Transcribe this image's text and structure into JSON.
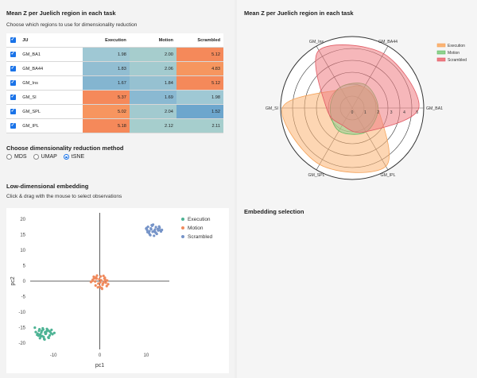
{
  "left": {
    "title": "Mean Z per Juelich region in each task",
    "subtitle": "Choose which regions to use for dimensionality reduction",
    "table": {
      "headers": [
        "JU",
        "Execution",
        "Motion",
        "Scrambled"
      ],
      "rows": [
        {
          "name": "GM_BA1",
          "values": [
            "1.98",
            "2.00",
            "5.12"
          ],
          "colors": [
            "#9fc8d4",
            "#a6cdcd",
            "#f5895a"
          ]
        },
        {
          "name": "GM_BA44",
          "values": [
            "1.83",
            "2.06",
            "4.83"
          ],
          "colors": [
            "#92bed2",
            "#a3cbcf",
            "#f6965f"
          ]
        },
        {
          "name": "GM_Ins",
          "values": [
            "1.67",
            "1.84",
            "5.12"
          ],
          "colors": [
            "#84b5d0",
            "#96c1d1",
            "#f5895a"
          ]
        },
        {
          "name": "GM_SI",
          "values": [
            "5.37",
            "1.69",
            "1.98"
          ],
          "colors": [
            "#f5895a",
            "#8ab9d2",
            "#9fc8d4"
          ]
        },
        {
          "name": "GM_SPL",
          "values": [
            "5.02",
            "2.04",
            "1.52"
          ],
          "colors": [
            "#f7955f",
            "#a2cacf",
            "#6da6cd"
          ]
        },
        {
          "name": "GM_IPL",
          "values": [
            "5.18",
            "2.12",
            "2.11"
          ],
          "colors": [
            "#f5895a",
            "#a6cecd",
            "#a6cecd"
          ]
        }
      ]
    },
    "method_heading": "Choose dimensionality reduction method",
    "methods": [
      {
        "label": "MDS",
        "selected": false
      },
      {
        "label": "UMAP",
        "selected": false
      },
      {
        "label": "tSNE",
        "selected": true
      }
    ],
    "embed_heading": "Low-dimensional embedding",
    "embed_sub": "Click & drag with the mouse to select observations"
  },
  "right": {
    "title": "Mean Z per Juelich region in each task",
    "selection_heading": "Embedding selection"
  },
  "colors": {
    "execution": "#fbb474",
    "motion": "#8fd18f",
    "scrambled": "#ee7b82",
    "scatter_exec": "#4db394",
    "scatter_motion": "#f08a5d",
    "scatter_scr": "#7694c8"
  },
  "chart_data": [
    {
      "type": "radar",
      "axes": [
        "GM_BA1",
        "GM_BA44",
        "GM_Ins",
        "GM_SI",
        "GM_SPL",
        "GM_IPL"
      ],
      "radial_ticks": [
        "0",
        "1",
        "2",
        "3",
        "4",
        "5"
      ],
      "rmax": 5.5,
      "series": [
        {
          "name": "Execution",
          "values": [
            1.98,
            1.83,
            1.67,
            5.37,
            5.02,
            5.18
          ]
        },
        {
          "name": "Motion",
          "values": [
            2.0,
            2.06,
            1.84,
            1.69,
            2.04,
            2.12
          ]
        },
        {
          "name": "Scrambled",
          "values": [
            5.12,
            4.83,
            5.12,
            1.98,
            1.52,
            2.11
          ]
        }
      ],
      "legend": "top-right"
    },
    {
      "type": "scatter",
      "xlabel": "pc1",
      "ylabel": "pc2",
      "xlim": [
        -15,
        15
      ],
      "ylim": [
        -22,
        22
      ],
      "xticks": [
        "-10",
        "0",
        "10"
      ],
      "yticks": [
        "20",
        "15",
        "10",
        "5",
        "0",
        "-5",
        "-10",
        "-15",
        "-20"
      ],
      "legend": "top-right",
      "series": [
        {
          "name": "Execution",
          "x": [
            -12.5,
            -11.8,
            -12.9,
            -11.2,
            -13.4,
            -10.8,
            -12.1,
            -11.5,
            -13.0,
            -10.5,
            -12.7,
            -11.0,
            -13.8,
            -12.3,
            -11.7,
            -10.9,
            -12.0,
            -13.2,
            -11.3,
            -12.6,
            -14.0,
            -10.2,
            -12.9,
            -11.6,
            -12.2,
            -13.5,
            -11.9,
            -10.7,
            -12.4,
            -11.4,
            -9.8,
            -13.1,
            -12.8,
            -11.1,
            -10.4
          ],
          "y": [
            -16.0,
            -16.5,
            -17.2,
            -15.8,
            -16.9,
            -17.5,
            -18.0,
            -16.2,
            -15.5,
            -16.8,
            -17.8,
            -18.3,
            -16.4,
            -15.2,
            -17.0,
            -16.1,
            -18.6,
            -17.6,
            -15.9,
            -16.6,
            -15.0,
            -17.1,
            -18.4,
            -16.9,
            -15.6,
            -17.3,
            -18.8,
            -16.3,
            -17.7,
            -15.4,
            -16.7,
            -16.0,
            -17.4,
            -18.1,
            -15.7
          ]
        },
        {
          "name": "Motion",
          "x": [
            -1.5,
            -0.8,
            0.2,
            1.0,
            1.6,
            -1.9,
            -0.3,
            0.6,
            1.3,
            -1.2,
            0.0,
            0.9,
            -0.6,
            1.8,
            -1.6,
            0.4,
            -0.1,
            1.1,
            -0.9,
            0.7,
            -1.3,
            0.3,
            1.5,
            -0.4,
            0.8,
            -1.0,
            0.1,
            1.2,
            -0.7,
            0.5
          ],
          "y": [
            0.5,
            1.2,
            1.5,
            0.8,
            0.2,
            -0.3,
            -0.8,
            -1.2,
            -0.5,
            0.9,
            -1.8,
            -0.2,
            1.8,
            -1.0,
            0.1,
            -2.2,
            0.6,
            1.1,
            -1.4,
            -0.7,
            1.4,
            0.3,
            -1.6,
            -2.0,
            1.7,
            -0.1,
            -0.4,
            0.4,
            0.8,
            -2.5
          ]
        },
        {
          "name": "Scrambled",
          "x": [
            10.2,
            11.0,
            11.8,
            12.5,
            10.6,
            11.4,
            12.1,
            13.0,
            10.0,
            10.9,
            11.6,
            12.8,
            11.2,
            12.3,
            10.4,
            11.9,
            13.2,
            10.8,
            12.0,
            11.5,
            12.6,
            10.3,
            11.1,
            12.9,
            11.7,
            10.7,
            12.2,
            11.3,
            13.4,
            10.1
          ],
          "y": [
            16.5,
            17.0,
            16.2,
            16.8,
            15.5,
            15.9,
            17.4,
            16.4,
            16.9,
            14.8,
            16.0,
            17.6,
            18.0,
            15.2,
            17.5,
            16.6,
            16.0,
            15.0,
            15.7,
            18.2,
            16.3,
            15.8,
            16.7,
            17.2,
            14.6,
            16.1,
            15.4,
            17.8,
            16.5,
            17.1
          ]
        }
      ]
    }
  ]
}
